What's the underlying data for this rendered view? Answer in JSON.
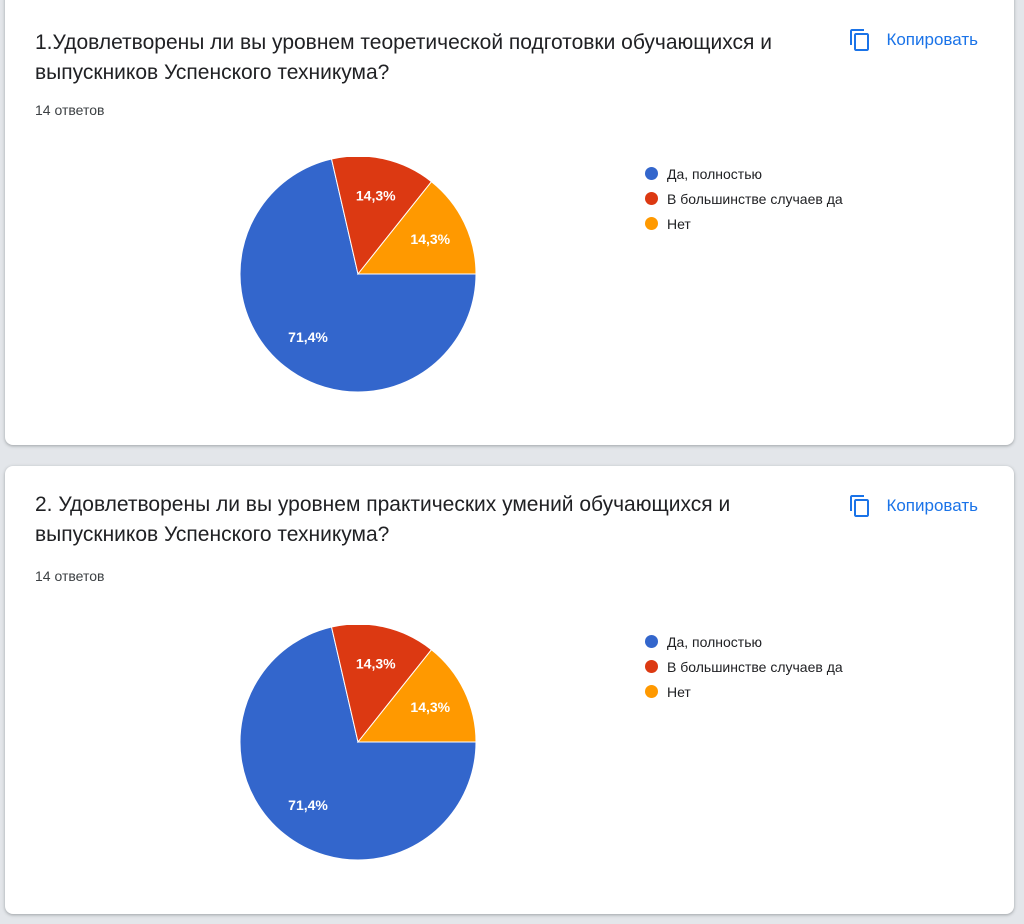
{
  "colors": {
    "series": [
      "#3366cc",
      "#dc3912",
      "#ff9900"
    ],
    "accent": "#1a73e8"
  },
  "cards": [
    {
      "title": "1.Удовлетворены ли вы уровнем теоретической подготовки обучающихся и выпускников Успенского техникума?",
      "responses": "14 ответов",
      "copy_label": "Копировать",
      "copy_icon": "copy-icon"
    },
    {
      "title": "2. Удовлетворены ли вы уровнем практических умений обучающихся и выпускников Успенского техникума?",
      "responses": "14 ответов",
      "copy_label": "Копировать",
      "copy_icon": "copy-icon"
    }
  ],
  "chart_data": [
    {
      "type": "pie",
      "categories": [
        "Да, полностью",
        "В большинстве случаев да",
        "Нет"
      ],
      "values": [
        71.4,
        14.3,
        14.3
      ],
      "value_labels": [
        "71,4%",
        "14,3%",
        "14,3%"
      ],
      "legend": "right"
    },
    {
      "type": "pie",
      "categories": [
        "Да, полностью",
        "В большинстве случаев да",
        "Нет"
      ],
      "values": [
        71.4,
        14.3,
        14.3
      ],
      "value_labels": [
        "71,4%",
        "14,3%",
        "14,3%"
      ],
      "legend": "right"
    }
  ]
}
